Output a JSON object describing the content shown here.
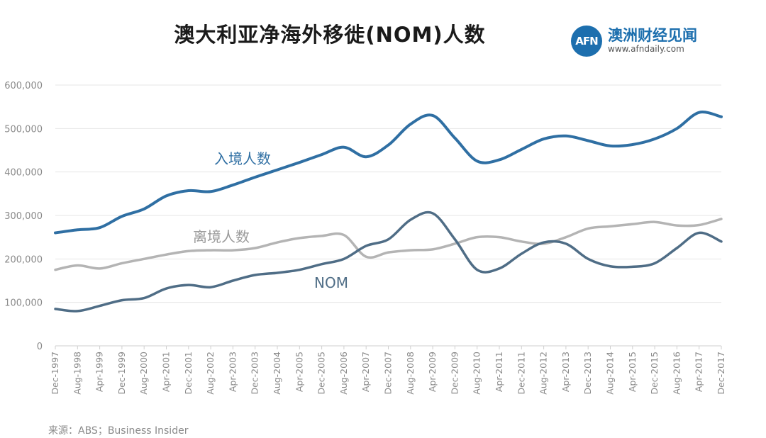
{
  "title": "澳大利亚净海外移徙(NOM)人数",
  "logo": {
    "badge": "AFN",
    "name": "澳洲财经见闻",
    "url": "www.afndaily.com"
  },
  "source": "来源：ABS；Business Insider",
  "colors": {
    "arrivals": "#2f6fa3",
    "departures": "#b4b4b4",
    "nom": "#4f6d86",
    "grid": "#e6e6e6"
  },
  "chart_data": {
    "type": "line",
    "title": "澳大利亚净海外移徙(NOM)人数",
    "ylim": [
      0,
      600000
    ],
    "y_ticks": [
      "0",
      "100,000",
      "200,000",
      "300,000",
      "400,000",
      "500,000",
      "600,000"
    ],
    "y_tick_values": [
      0,
      100000,
      200000,
      300000,
      400000,
      500000,
      600000
    ],
    "x_labels": [
      "Dec-1997",
      "Aug-1998",
      "Apr-1999",
      "Dec-1999",
      "Aug-2000",
      "Apr-2001",
      "Dec-2001",
      "Aug-2002",
      "Apr-2003",
      "Dec-2003",
      "Aug-2004",
      "Apr-2005",
      "Dec-2005",
      "Aug-2006",
      "Apr-2007",
      "Dec-2007",
      "Aug-2008",
      "Apr-2009",
      "Dec-2009",
      "Aug-2010",
      "Apr-2011",
      "Dec-2011",
      "Aug-2012",
      "Apr-2013",
      "Dec-2013",
      "Aug-2014",
      "Apr-2015",
      "Dec-2015",
      "Aug-2016",
      "Apr-2017",
      "Dec-2017"
    ],
    "grid": "horizontal",
    "series": [
      {
        "name": "入境人数",
        "key": "arrivals",
        "values": [
          260000,
          267000,
          272000,
          298000,
          315000,
          345000,
          357000,
          355000,
          370000,
          388000,
          405000,
          422000,
          440000,
          457000,
          435000,
          462000,
          510000,
          530000,
          478000,
          425000,
          428000,
          452000,
          476000,
          483000,
          472000,
          460000,
          463000,
          476000,
          500000,
          537000,
          527000
        ]
      },
      {
        "name": "离境人数",
        "key": "departures",
        "values": [
          175000,
          185000,
          178000,
          190000,
          200000,
          210000,
          218000,
          220000,
          220000,
          225000,
          238000,
          248000,
          253000,
          255000,
          205000,
          215000,
          220000,
          222000,
          235000,
          250000,
          250000,
          240000,
          235000,
          250000,
          270000,
          275000,
          280000,
          285000,
          277000,
          278000,
          292000
        ]
      },
      {
        "name": "NOM",
        "key": "nom",
        "values": [
          85000,
          80000,
          92000,
          105000,
          110000,
          132000,
          140000,
          135000,
          150000,
          163000,
          168000,
          175000,
          188000,
          200000,
          230000,
          245000,
          290000,
          305000,
          245000,
          175000,
          178000,
          212000,
          238000,
          235000,
          200000,
          183000,
          182000,
          190000,
          225000,
          260000,
          240000
        ]
      }
    ],
    "series_labels": {
      "arrivals": "入境人数",
      "departures": "离境人数",
      "nom": "NOM"
    }
  }
}
